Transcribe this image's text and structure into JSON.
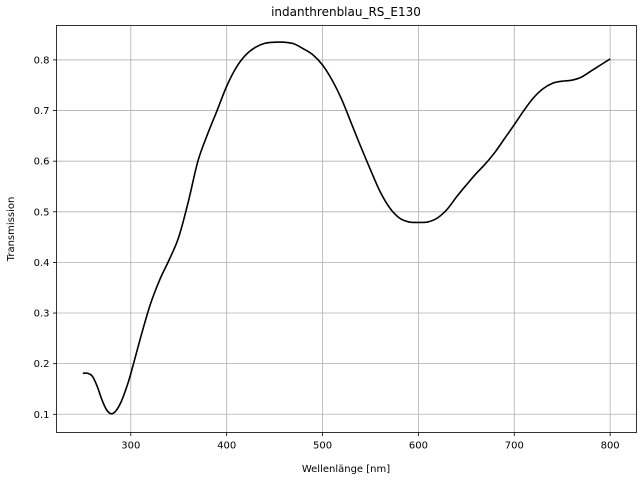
{
  "chart_data": {
    "type": "line",
    "title": "indanthrenblau_RS_E130",
    "xlabel": "Wellenlänge [nm]",
    "ylabel": "Transmission",
    "xlim": [
      222.5,
      827.5
    ],
    "ylim": [
      0.064,
      0.868
    ],
    "xticks": [
      300,
      400,
      500,
      600,
      700,
      800
    ],
    "yticks": [
      0.1,
      0.2,
      0.3,
      0.4,
      0.5,
      0.6,
      0.7,
      0.8
    ],
    "xtick_labels": [
      "300",
      "400",
      "500",
      "600",
      "700",
      "800"
    ],
    "ytick_labels": [
      "0.1",
      "0.2",
      "0.3",
      "0.4",
      "0.5",
      "0.6",
      "0.7",
      "0.8"
    ],
    "grid": true,
    "line_color": "#000000",
    "series": [
      {
        "x": [
          250,
          255,
          260,
          265,
          270,
          275,
          280,
          285,
          290,
          295,
          300,
          310,
          320,
          330,
          340,
          350,
          360,
          370,
          380,
          390,
          400,
          410,
          420,
          430,
          440,
          450,
          460,
          470,
          480,
          490,
          500,
          510,
          520,
          530,
          540,
          550,
          560,
          570,
          580,
          590,
          600,
          610,
          620,
          630,
          640,
          650,
          660,
          670,
          680,
          690,
          700,
          710,
          720,
          730,
          740,
          750,
          760,
          770,
          780,
          790,
          800
        ],
        "y": [
          0.181,
          0.181,
          0.175,
          0.155,
          0.128,
          0.108,
          0.101,
          0.108,
          0.125,
          0.15,
          0.18,
          0.25,
          0.315,
          0.365,
          0.405,
          0.45,
          0.52,
          0.6,
          0.653,
          0.7,
          0.748,
          0.785,
          0.81,
          0.825,
          0.833,
          0.835,
          0.835,
          0.832,
          0.822,
          0.81,
          0.79,
          0.76,
          0.722,
          0.675,
          0.628,
          0.583,
          0.54,
          0.508,
          0.488,
          0.48,
          0.479,
          0.48,
          0.488,
          0.505,
          0.53,
          0.553,
          0.575,
          0.595,
          0.618,
          0.645,
          0.672,
          0.7,
          0.725,
          0.743,
          0.754,
          0.758,
          0.76,
          0.766,
          0.778,
          0.79,
          0.802
        ]
      }
    ]
  }
}
